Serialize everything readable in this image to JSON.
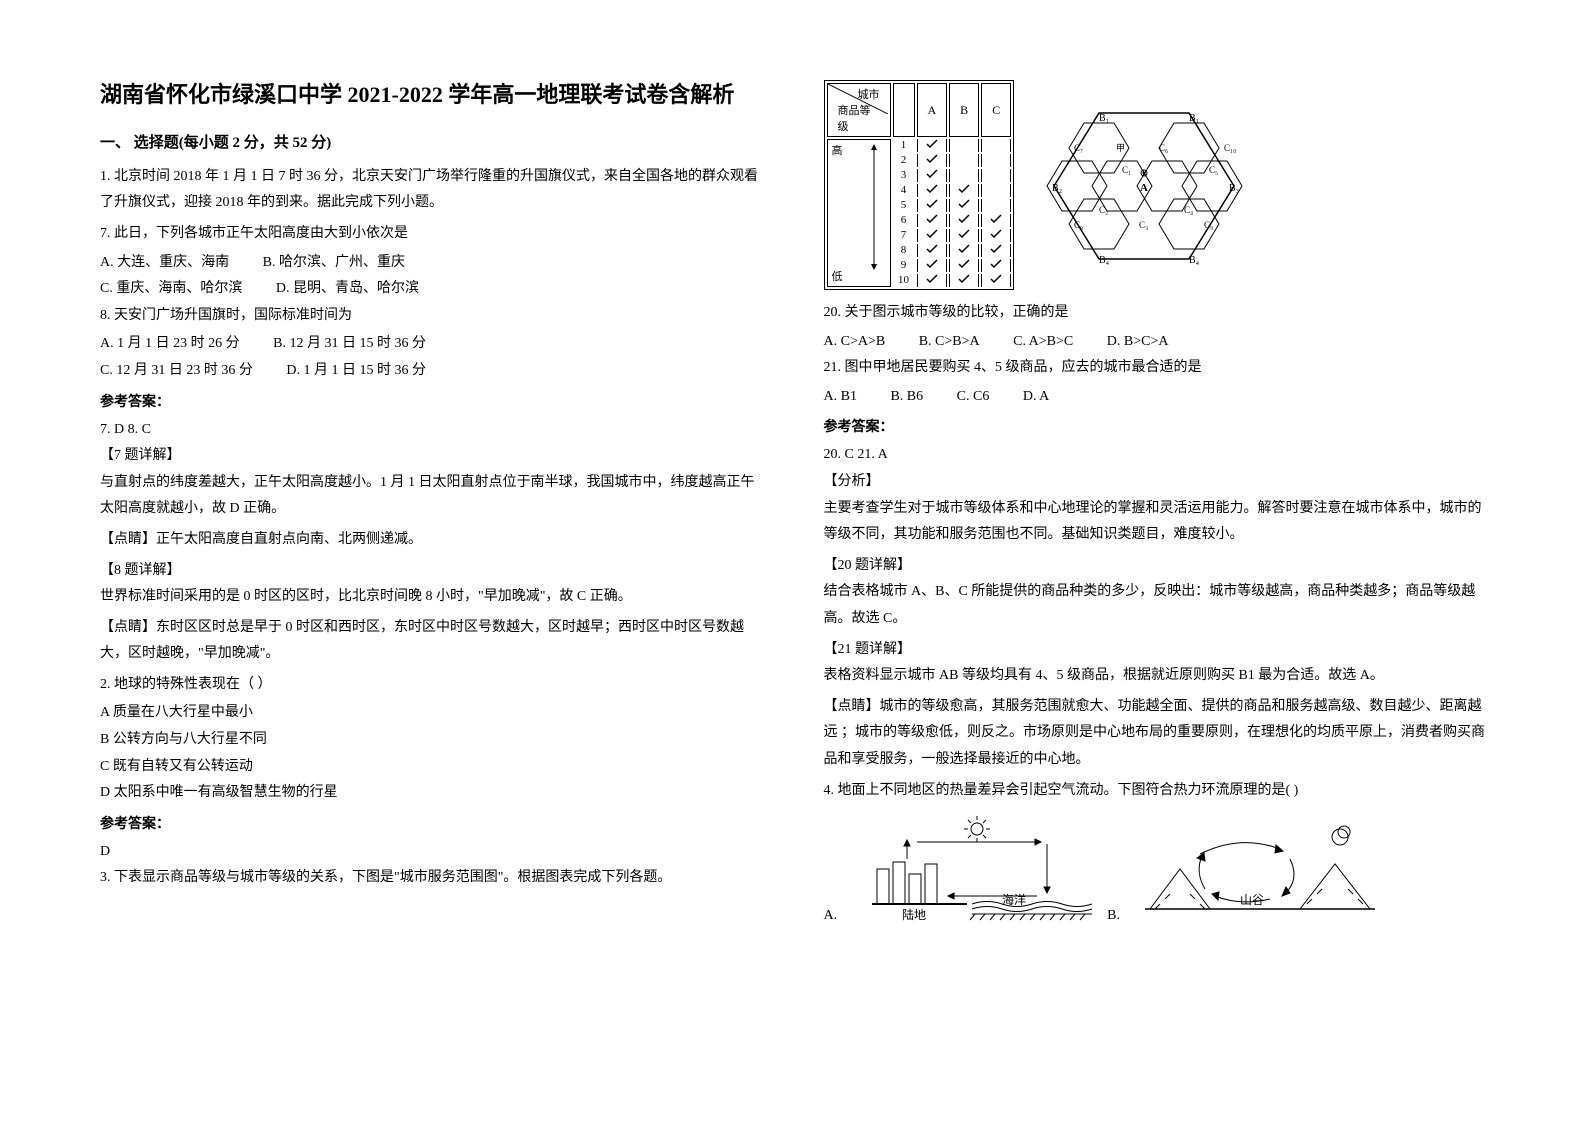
{
  "title": "湖南省怀化市绿溪口中学 2021-2022 学年高一地理联考试卷含解析",
  "section1_heading": "一、 选择题(每小题 2 分，共 52 分)",
  "q1_intro": "1. 北京时间 2018 年 1 月 1 日 7 时 36 分，北京天安门广场举行隆重的升国旗仪式，来自全国各地的群众观看了升旗仪式，迎接 2018 年的到来。据此完成下列小题。",
  "q7_text": "7.  此日，下列各城市正午太阳高度由大到小依次是",
  "q7_optA": "A.  大连、重庆、海南",
  "q7_optB": "B.  哈尔滨、广州、重庆",
  "q7_optC": "C.  重庆、海南、哈尔滨",
  "q7_optD": "D.  昆明、青岛、哈尔滨",
  "q8_text": "8.  天安门广场升国旗时，国际标准时间为",
  "q8_optA": "A.  1 月 1 日 23 时 26 分",
  "q8_optB": "B.  12 月 31 日 15 时 36 分",
  "q8_optC": "C.  12 月 31 日 23 时 36 分",
  "q8_optD": "D.  1 月 1 日 15 时 36 分",
  "answer_label": "参考答案：",
  "q78_answer": "7. D       8. C",
  "q7_explain_label": "【7 题详解】",
  "q7_explain": "与直射点的纬度差越大，正午太阳高度越小。1 月 1 日太阳直射点位于南半球，我国城市中，纬度越高正午太阳高度就越小，故 D 正确。",
  "q7_tip": "【点睛】正午太阳高度自直射点向南、北两侧递减。",
  "q8_explain_label": "【8 题详解】",
  "q8_explain": "世界标准时间采用的是 0 时区的区时，比北京时间晚 8 小时，\"早加晚减\"，故 C 正确。",
  "q8_tip": "【点睛】东时区区时总是早于 0 时区和西时区，东时区中时区号数越大，区时越早；西时区中时区号数越大，区时越晚，\"早加晚减\"。",
  "q2_text": "2. 地球的特殊性表现在（        ）",
  "q2_optA": "A 质量在八大行星中最小",
  "q2_optB": "B 公转方向与八大行星不同",
  "q2_optC": "C 既有自转又有公转运动",
  "q2_optD": "D 太阳系中唯一有高级智慧生物的行星",
  "q2_answer": "D",
  "q3_text": "3. 下表显示商品等级与城市等级的关系，下图是\"城市服务范围图\"。根据图表完成下列各题。",
  "table": {
    "header_left": "商品等级",
    "header_city": "城市",
    "cols": [
      "A",
      "B",
      "C"
    ],
    "rows_label_top": "高",
    "rows_label_bottom": "低",
    "row_nums": [
      "1",
      "2",
      "3",
      "4",
      "5",
      "6",
      "7",
      "8",
      "9",
      "10"
    ],
    "checks": {
      "A": [
        1,
        1,
        1,
        1,
        1,
        1,
        1,
        1,
        1,
        1
      ],
      "B": [
        0,
        0,
        0,
        1,
        1,
        1,
        1,
        1,
        1,
        1
      ],
      "C": [
        0,
        0,
        0,
        0,
        0,
        1,
        1,
        1,
        1,
        1
      ]
    }
  },
  "hexmap_labels": [
    "B₁",
    "B₁",
    "C₇",
    "甲",
    "C₆",
    "C₁₀",
    "C₁",
    "A",
    "C₅",
    "B₂",
    "B₃",
    "C₂",
    "C₄",
    "C₈",
    "C₃",
    "C₉",
    "B₄",
    "B₄",
    "◎"
  ],
  "q20_text": "20.  关于图示城市等级的比较，正确的是",
  "q20_optA": "A.  C>A>B",
  "q20_optB": "B.  C>B>A",
  "q20_optC": "C.  A>B>C",
  "q20_optD": "D.  B>C>A",
  "q21_text": "21.  图中甲地居民要购买 4、5 级商品，应去的城市最合适的是",
  "q21_optA": "A. B1",
  "q21_optB": "B. B6",
  "q21_optC": "C. C6",
  "q21_optD": "D. A",
  "q2021_answer": "20. C       21. A",
  "analysis_label": "【分析】",
  "analysis_text": "主要考查学生对于城市等级体系和中心地理论的掌握和灵活运用能力。解答时要注意在城市体系中，城市的等级不同，其功能和服务范围也不同。基础知识类题目，难度较小。",
  "q20_explain_label": "【20 题详解】",
  "q20_explain": "结合表格城市 A、B、C 所能提供的商品种类的多少，反映出：城市等级越高，商品种类越多；商品等级越高。故选 C。",
  "q21_explain_label": "【21 题详解】",
  "q21_explain": "表格资料显示城市 AB 等级均具有 4、5 级商品，根据就近原则购买 B1 最为合适。故选 A。",
  "q21_tip": "【点睛】城市的等级愈高，其服务范围就愈大、功能越全面、提供的商品和服务越高级、数目越少、距离越远 ；城市的等级愈低，则反之。市场原则是中心地布局的重要原则，在理想化的均质平原上，消费者购买商品和享受服务，一般选择最接近的中心地。",
  "q4_text": "4. 地面上不同地区的热量差异会引起空气流动。下图符合热力环流原理的是(        )",
  "q4_imgA_label": "A.",
  "q4_imgA_land": "陆地",
  "q4_imgA_sea": "海洋",
  "q4_imgB_label": "B.",
  "q4_imgB_valley": "山谷"
}
